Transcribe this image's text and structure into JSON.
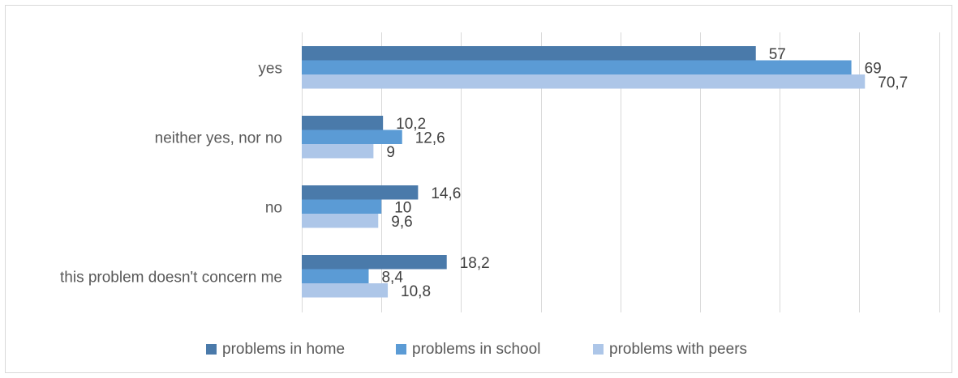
{
  "chart_data": {
    "type": "bar",
    "orientation": "horizontal",
    "categories": [
      "yes",
      "neither yes, nor no",
      "no",
      "this problem doesn't concern me"
    ],
    "series": [
      {
        "name": "problems in home",
        "values": [
          57,
          10.2,
          14.6,
          18.2
        ],
        "labels": [
          "57",
          "10,2",
          "14,6",
          "18,2"
        ],
        "color": "#4a7aaa"
      },
      {
        "name": "problems in school",
        "values": [
          69,
          12.6,
          10,
          8.4
        ],
        "labels": [
          "69",
          "12,6",
          "10",
          "8,4"
        ],
        "color": "#5b9bd5"
      },
      {
        "name": "problems with peers",
        "values": [
          70.7,
          9,
          9.6,
          10.8
        ],
        "labels": [
          "70,7",
          "9",
          "9,6",
          "10,8"
        ],
        "color": "#adc6e8"
      }
    ],
    "xlim": [
      0,
      80
    ],
    "grid": true,
    "legend": "bottom"
  }
}
